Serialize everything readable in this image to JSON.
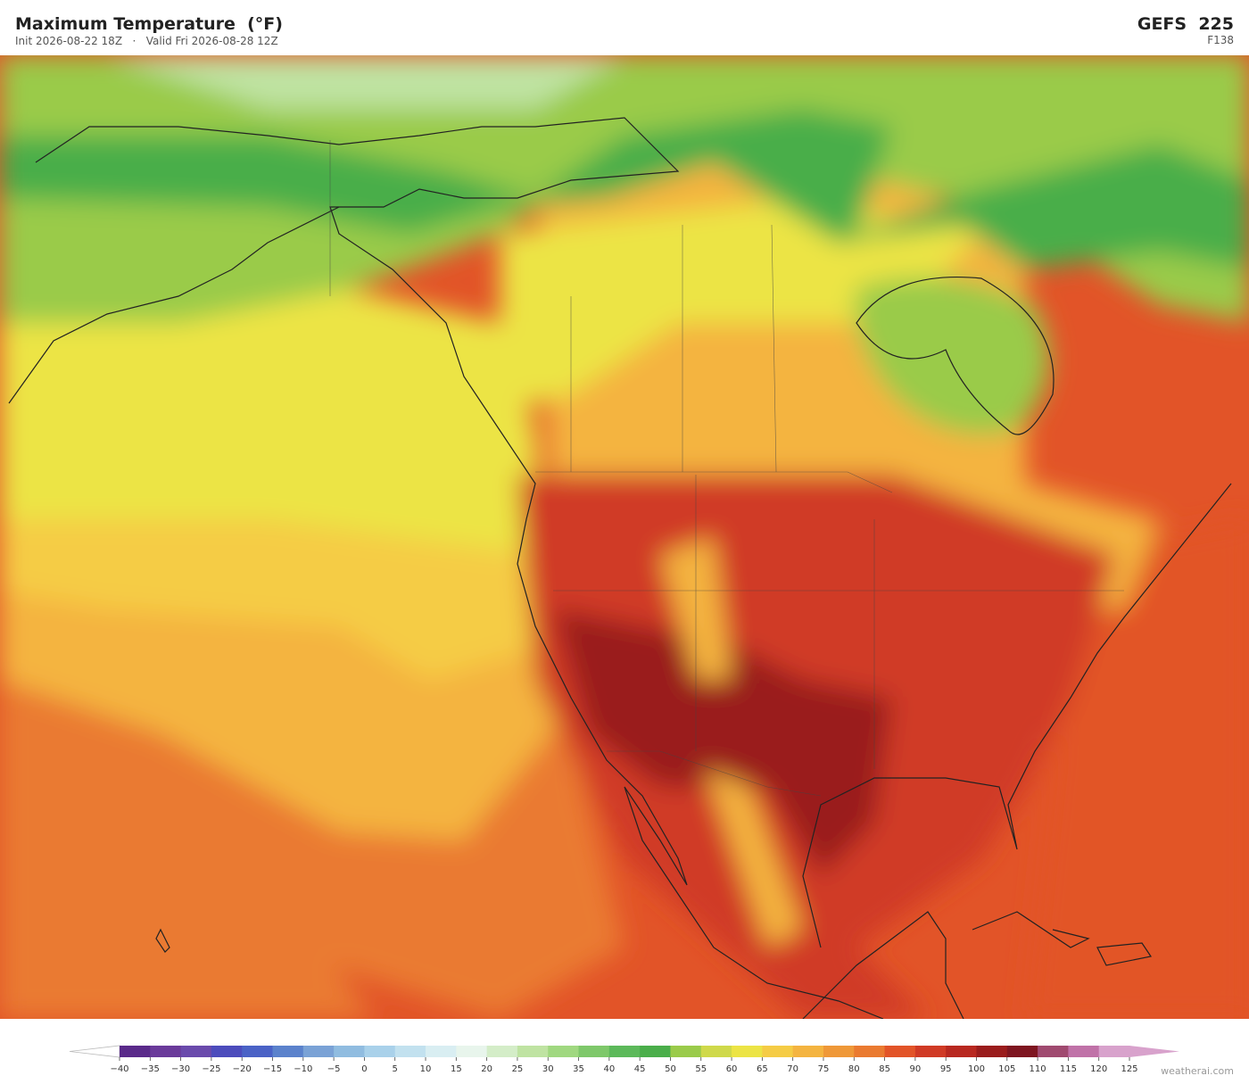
{
  "header": {
    "title": "Maximum Temperature  (°F)",
    "init": "Init 2026-08-22 18Z",
    "separator": "·",
    "valid": "Valid Fri 2026-08-28 12Z",
    "model": "GEFS  225",
    "forecast_hour": "F138"
  },
  "colorbar": {
    "ticks": [
      {
        "value": -40,
        "label": "−40"
      },
      {
        "value": -35,
        "label": "−35"
      },
      {
        "value": -30,
        "label": "−30"
      },
      {
        "value": -25,
        "label": "−25"
      },
      {
        "value": -20,
        "label": "−20"
      },
      {
        "value": -15,
        "label": "−15"
      },
      {
        "value": -10,
        "label": "−10"
      },
      {
        "value": -5,
        "label": "−5"
      },
      0,
      5,
      10,
      15,
      20,
      25,
      30,
      35,
      40,
      45,
      50,
      55,
      60,
      65,
      70,
      75,
      80,
      85,
      90,
      95,
      100,
      105,
      110,
      115,
      120,
      125
    ],
    "colors": [
      "#5a2a8a",
      "#6a3a9a",
      "#6a4aac",
      "#4c4cbc",
      "#4a62c6",
      "#5b82cc",
      "#7aa2d6",
      "#90bce0",
      "#a9d1ea",
      "#c2e1ef",
      "#d9eef2",
      "#e8f5ec",
      "#d4edc8",
      "#bfe3a2",
      "#a0d880",
      "#7ec86a",
      "#5cb95a",
      "#4aae4a",
      "#9acb4a",
      "#cfd94a",
      "#ece445",
      "#f5cc45",
      "#f4b440",
      "#ef9838",
      "#ea7a30",
      "#e25428",
      "#d03a25",
      "#b82820",
      "#9a1c1c",
      "#7e1520",
      "#a04a70",
      "#c072a8",
      "#d8a2cc"
    ],
    "under_color": "#ffffff",
    "over_color": "#d8a2cc"
  },
  "watermark": "weatherai.com"
}
